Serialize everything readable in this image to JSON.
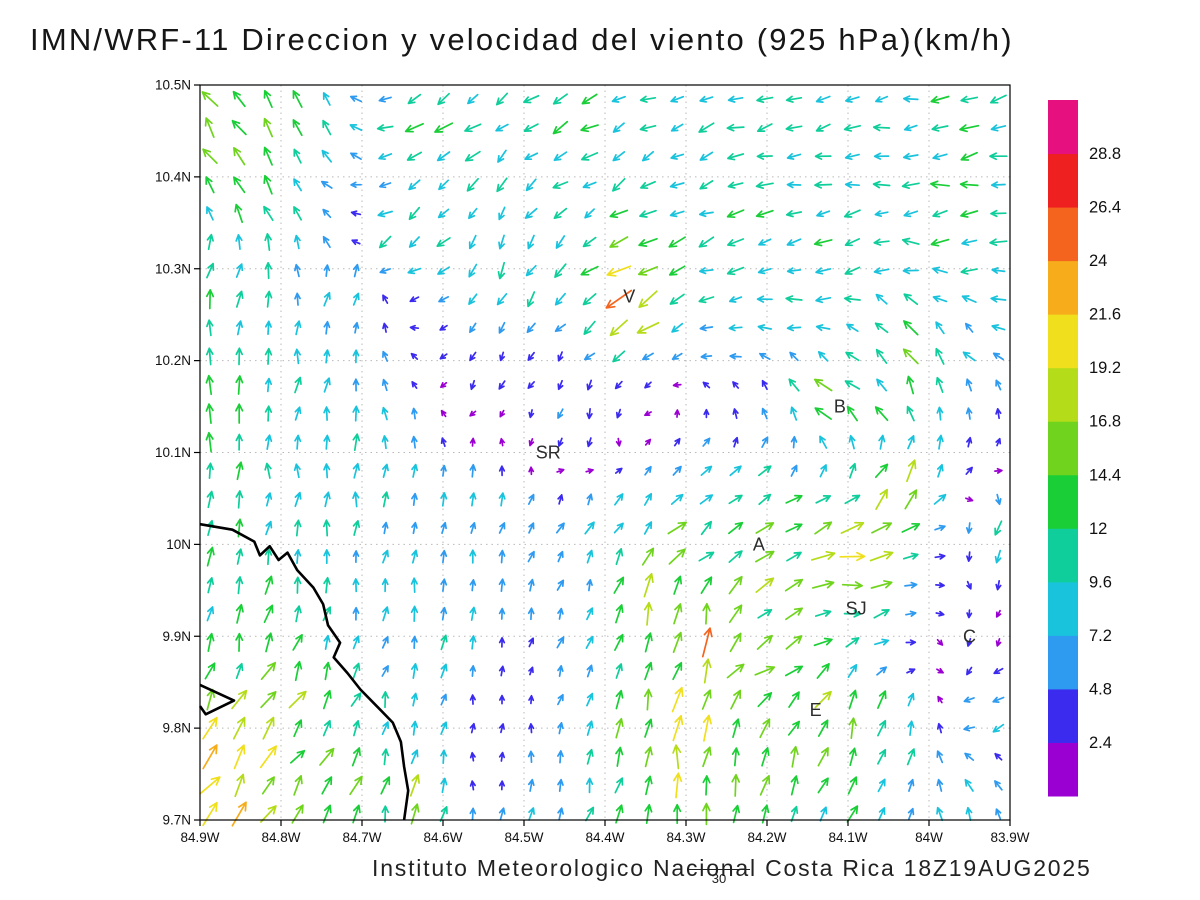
{
  "title": "IMN/WRF-11 Direccion y velocidad del viento (925 hPa)(km/h)",
  "footer": {
    "text": "Instituto Meteorologico Nacional Costa Rica 18Z19AUG2025",
    "forecast_hour": "30"
  },
  "axes": {
    "lat_ticks": [
      "10.5N",
      "10.4N",
      "10.3N",
      "10.2N",
      "10.1N",
      "10N",
      "9.9N",
      "9.8N",
      "9.7N"
    ],
    "lon_ticks": [
      "84.9W",
      "84.8W",
      "84.7W",
      "84.6W",
      "84.5W",
      "84.4W",
      "84.3W",
      "84.2W",
      "84.1W",
      "84W",
      "83.9W"
    ],
    "lat_range": [
      9.7,
      10.5
    ],
    "lon_range_west": [
      84.9,
      83.9
    ],
    "grid_interval_deg": 0.1
  },
  "chart_data": {
    "type": "vector_field",
    "title": "IMN/WRF-11 Direccion y velocidad del viento (925 hPa)(km/h)",
    "model": "IMN/WRF-11",
    "variable": "wind direction and speed",
    "pressure_level_hpa": 925,
    "units": "km/h",
    "valid_time": "18Z19AUG2025",
    "forecast_hour": "30",
    "lat_range": [
      9.7,
      10.5
    ],
    "lon_range_west": [
      84.9,
      83.9
    ],
    "grid_on": true,
    "legend_position": "right-colorbar",
    "levels": [
      2.4,
      4.8,
      7.2,
      9.6,
      12,
      14.4,
      16.8,
      19.2,
      21.6,
      24,
      26.4,
      28.8
    ],
    "colors": [
      "#9b00d3",
      "#3b2bee",
      "#2e9bf0",
      "#19c3dc",
      "#0fce9b",
      "#1ace37",
      "#70d41e",
      "#b5dc19",
      "#efdf1d",
      "#f6ac1b",
      "#f4641f",
      "#ef2020",
      "#e6117e"
    ],
    "wind_samples": [
      [
        83.95,
        10.47,
        -11,
        -3
      ],
      [
        84.2,
        10.47,
        -12,
        -4
      ],
      [
        84.45,
        10.46,
        -10,
        -6
      ],
      [
        84.62,
        10.44,
        -10,
        -8
      ],
      [
        84.78,
        10.45,
        -7,
        11
      ],
      [
        84.87,
        10.42,
        -9,
        14
      ],
      [
        83.95,
        10.35,
        -12,
        -2
      ],
      [
        84.1,
        10.32,
        -11,
        -3
      ],
      [
        84.25,
        10.33,
        -10,
        -4
      ],
      [
        84.37,
        10.27,
        -19,
        -13
      ],
      [
        84.52,
        10.3,
        -5,
        -11
      ],
      [
        84.65,
        10.33,
        -9,
        -7
      ],
      [
        84.72,
        10.28,
        2,
        9
      ],
      [
        84.87,
        10.15,
        1,
        13
      ],
      [
        84.87,
        9.95,
        2,
        12
      ],
      [
        84.88,
        10.3,
        3,
        12
      ],
      [
        84.7,
        10.1,
        0,
        10
      ],
      [
        84.75,
        10.18,
        1,
        9
      ],
      [
        84.55,
        10.05,
        2,
        8
      ],
      [
        84.45,
        10.15,
        -2,
        -6
      ],
      [
        84.55,
        10.18,
        -2,
        -4
      ],
      [
        84.42,
        10.12,
        -1,
        -6
      ],
      [
        84.4,
        10.03,
        5,
        8
      ],
      [
        84.45,
        9.97,
        1,
        4
      ],
      [
        84.5,
        9.85,
        0.5,
        2
      ],
      [
        84.55,
        9.77,
        -1,
        2.5
      ],
      [
        84.8,
        9.78,
        10,
        14
      ],
      [
        84.88,
        9.72,
        12,
        16
      ],
      [
        84.65,
        9.73,
        4,
        14
      ],
      [
        84.3,
        9.78,
        2,
        20
      ],
      [
        84.28,
        9.9,
        3,
        24
      ],
      [
        84.35,
        9.95,
        6,
        16
      ],
      [
        84.15,
        9.75,
        4,
        12
      ],
      [
        83.95,
        9.74,
        -4,
        8
      ],
      [
        84.11,
        10.15,
        -12,
        10
      ],
      [
        84.04,
        10.21,
        -8,
        12
      ],
      [
        84.15,
        10.3,
        -10,
        -2
      ],
      [
        84.2,
        10.0,
        16,
        6
      ],
      [
        84.3,
        10.01,
        12,
        8
      ],
      [
        84.08,
        9.99,
        24,
        3
      ],
      [
        84.04,
        10.06,
        10,
        16
      ],
      [
        84.09,
        9.93,
        14,
        2
      ],
      [
        84.0,
        9.9,
        2,
        -2
      ],
      [
        83.94,
        9.9,
        -2,
        -3
      ],
      [
        83.92,
        10.0,
        -2,
        -10
      ],
      [
        83.93,
        9.82,
        -8,
        -6
      ],
      [
        84.14,
        9.82,
        8,
        14
      ],
      [
        84.07,
        9.8,
        4,
        16
      ],
      [
        84.2,
        9.87,
        12,
        4
      ],
      [
        84.6,
        9.9,
        1,
        8
      ],
      [
        84.55,
        10.35,
        -4,
        -9
      ]
    ],
    "stations": [
      {
        "label": "V",
        "lon": 84.37,
        "lat": 10.27
      },
      {
        "label": "B",
        "lon": 84.11,
        "lat": 10.15
      },
      {
        "label": "SR",
        "lon": 84.47,
        "lat": 10.1
      },
      {
        "label": "A",
        "lon": 84.21,
        "lat": 10.0
      },
      {
        "label": "SJ",
        "lon": 84.09,
        "lat": 9.93
      },
      {
        "label": "C",
        "lon": 83.95,
        "lat": 9.9
      },
      {
        "label": "E",
        "lon": 84.14,
        "lat": 9.82
      }
    ],
    "coastline": [
      [
        84.9,
        10.022
      ],
      [
        84.86,
        10.016
      ],
      [
        84.833,
        10.003
      ],
      [
        84.826,
        9.988
      ],
      [
        84.814,
        9.998
      ],
      [
        84.803,
        9.983
      ],
      [
        84.792,
        9.991
      ],
      [
        84.78,
        9.972
      ],
      [
        84.76,
        9.953
      ],
      [
        84.748,
        9.935
      ],
      [
        84.742,
        9.912
      ],
      [
        84.727,
        9.893
      ],
      [
        84.735,
        9.877
      ],
      [
        84.718,
        9.86
      ],
      [
        84.702,
        9.842
      ],
      [
        84.683,
        9.825
      ],
      [
        84.662,
        9.806
      ],
      [
        84.652,
        9.785
      ],
      [
        84.648,
        9.758
      ],
      [
        84.643,
        9.732
      ],
      [
        84.648,
        9.7
      ]
    ],
    "coast_peninsula": [
      [
        84.9,
        9.847
      ],
      [
        84.858,
        9.83
      ],
      [
        84.893,
        9.815
      ],
      [
        84.9,
        9.824
      ]
    ]
  }
}
